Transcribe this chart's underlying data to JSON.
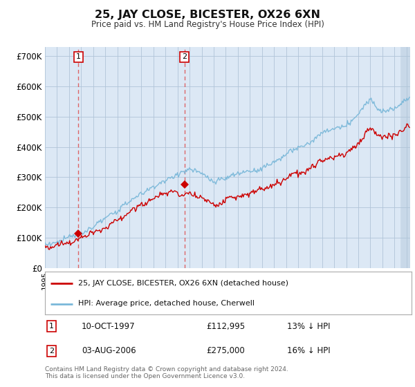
{
  "title": "25, JAY CLOSE, BICESTER, OX26 6XN",
  "subtitle": "Price paid vs. HM Land Registry's House Price Index (HPI)",
  "ylabel_ticks": [
    "£0",
    "£100K",
    "£200K",
    "£300K",
    "£400K",
    "£500K",
    "£600K",
    "£700K"
  ],
  "ytick_values": [
    0,
    100000,
    200000,
    300000,
    400000,
    500000,
    600000,
    700000
  ],
  "ylim": [
    0,
    730000
  ],
  "xlim_start": 1995.0,
  "xlim_end": 2025.3,
  "hpi_color": "#7ab8d9",
  "price_color": "#cc0000",
  "marker1_x": 1997.78,
  "marker1_y": 112995,
  "marker2_x": 2006.58,
  "marker2_y": 275000,
  "legend_line1": "25, JAY CLOSE, BICESTER, OX26 6XN (detached house)",
  "legend_line2": "HPI: Average price, detached house, Cherwell",
  "note1_label": "1",
  "note1_date": "10-OCT-1997",
  "note1_price": "£112,995",
  "note1_hpi": "13% ↓ HPI",
  "note2_label": "2",
  "note2_date": "03-AUG-2006",
  "note2_price": "£275,000",
  "note2_hpi": "16% ↓ HPI",
  "footer": "Contains HM Land Registry data © Crown copyright and database right 2024.\nThis data is licensed under the Open Government Licence v3.0.",
  "plot_bg": "#dce8f5",
  "fig_bg": "#ffffff",
  "hatch_bg": "#c8d8e8",
  "grid_color": "#b0c4d8",
  "hatch_start": 2024.42
}
